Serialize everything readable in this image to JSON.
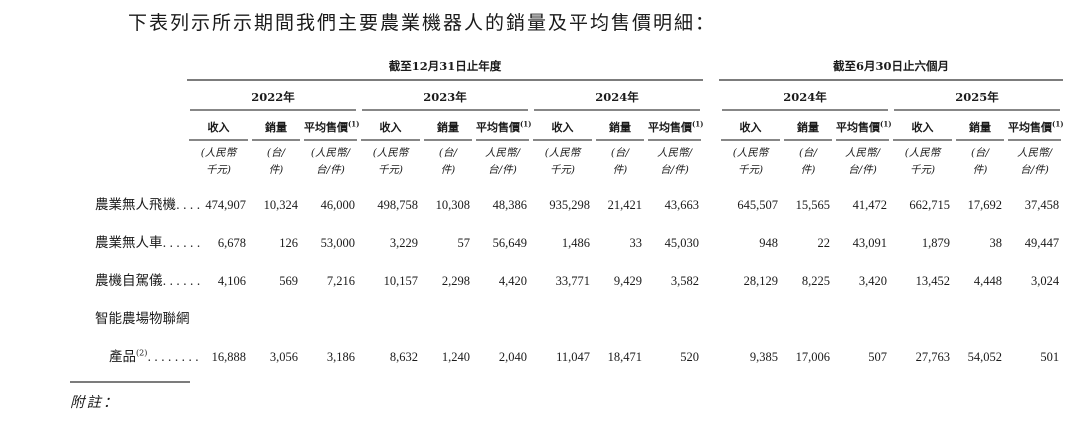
{
  "title": "下表列示所示期間我們主要農業機器人的銷量及平均售價明細：",
  "table": {
    "groups": [
      {
        "label": "截至12月31日止年度",
        "years": 3
      },
      {
        "label": "截至6月30日止六個月",
        "years": 2
      }
    ],
    "years": [
      "2022年",
      "2023年",
      "2024年",
      "2024年",
      "2025年"
    ],
    "columns": {
      "revenue": "收入",
      "volume": "銷量",
      "asp": "平均售價",
      "asp_sup": "(1)"
    },
    "units": {
      "revenue": [
        "(人民幣",
        "千元)"
      ],
      "volume": [
        "(台/",
        "件)"
      ],
      "asp_first": [
        "(人民幣/",
        "台/件)"
      ],
      "asp_other": [
        "人民幣/",
        "台/件)"
      ]
    },
    "rows": [
      {
        "label": "農業無人飛機",
        "sup": "",
        "dots": "....",
        "indent": false,
        "values": [
          "474,907",
          "10,324",
          "46,000",
          "498,758",
          "10,308",
          "48,386",
          "935,298",
          "21,421",
          "43,663",
          "645,507",
          "15,565",
          "41,472",
          "662,715",
          "17,692",
          "37,458"
        ]
      },
      {
        "label": "農業無人車",
        "sup": "",
        "dots": "......",
        "indent": false,
        "values": [
          "6,678",
          "126",
          "53,000",
          "3,229",
          "57",
          "56,649",
          "1,486",
          "33",
          "45,030",
          "948",
          "22",
          "43,091",
          "1,879",
          "38",
          "49,447"
        ]
      },
      {
        "label": "農機自駕儀",
        "sup": "",
        "dots": "......",
        "indent": false,
        "values": [
          "4,106",
          "569",
          "7,216",
          "10,157",
          "2,298",
          "4,420",
          "33,771",
          "9,429",
          "3,582",
          "28,129",
          "8,225",
          "3,420",
          "13,452",
          "4,448",
          "3,024"
        ]
      },
      {
        "label": "智能農場物聯網",
        "sup": "",
        "dots": "",
        "indent": false,
        "values": []
      },
      {
        "label": "產品",
        "sup": "(2)",
        "dots": "........",
        "indent": true,
        "values": [
          "16,888",
          "3,056",
          "3,186",
          "8,632",
          "1,240",
          "2,040",
          "11,047",
          "18,471",
          "520",
          "9,385",
          "17,006",
          "507",
          "27,763",
          "54,052",
          "501"
        ]
      }
    ]
  },
  "footnote": {
    "label": "附註："
  }
}
